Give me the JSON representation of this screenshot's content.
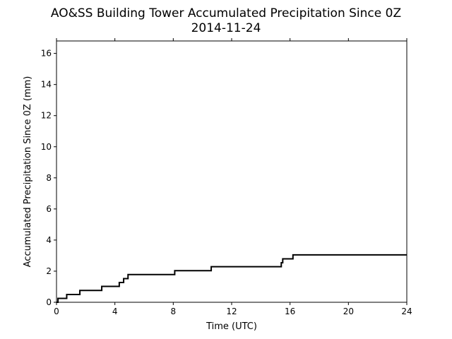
{
  "chart_data": {
    "type": "line",
    "title": "AO&SS Building Tower Accumulated Precipitation Since 0Z",
    "subtitle": "2014-11-24",
    "xlabel": "Time (UTC)",
    "ylabel": "Accumulated Precipitation Since 0Z (mm)",
    "xlim": [
      0,
      24
    ],
    "ylim": [
      0,
      16.8
    ],
    "xticks": [
      0,
      4,
      8,
      12,
      16,
      20,
      24
    ],
    "yticks": [
      0,
      2,
      4,
      6,
      8,
      10,
      12,
      14,
      16
    ],
    "grid": false,
    "line_color": "#000000",
    "series": [
      {
        "step": "post",
        "x": [
          0,
          0.1,
          0.7,
          1.6,
          3.1,
          4.3,
          4.6,
          4.9,
          8.1,
          10.6,
          15.4,
          15.5,
          16.2,
          24
        ],
        "y": [
          0,
          0.25,
          0.5,
          0.76,
          1.02,
          1.27,
          1.52,
          1.78,
          2.03,
          2.29,
          2.54,
          2.79,
          3.05,
          3.05
        ]
      }
    ]
  }
}
